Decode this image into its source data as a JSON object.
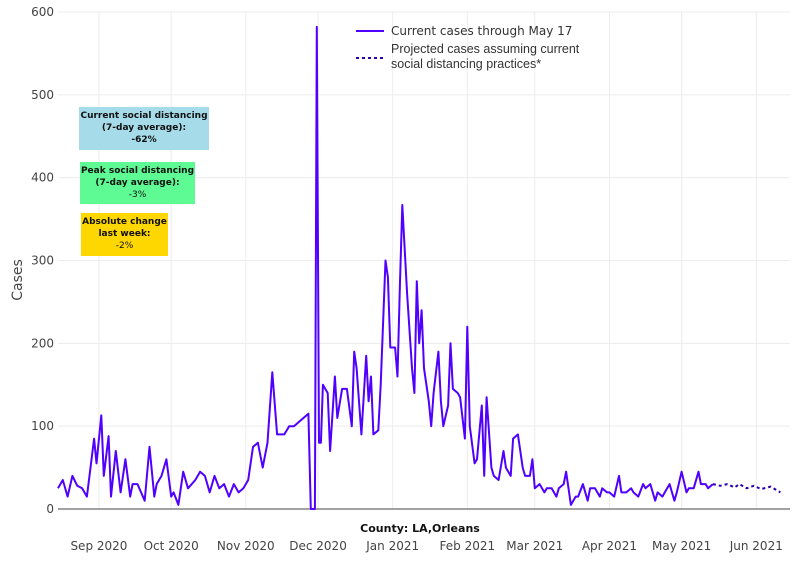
{
  "chart_data": {
    "type": "line",
    "title": "",
    "xlabel": "County: LA,Orleans",
    "ylabel": "Cases",
    "x_units": "days since 2020-09-01",
    "xlim": [
      -17,
      287
    ],
    "ylim": [
      0,
      600
    ],
    "yticks": [
      0,
      100,
      200,
      300,
      400,
      500,
      600
    ],
    "xticks": [
      {
        "day": 0,
        "label": "Sep 2020"
      },
      {
        "day": 30,
        "label": "Oct 2020"
      },
      {
        "day": 61,
        "label": "Nov 2020"
      },
      {
        "day": 91,
        "label": "Dec 2020"
      },
      {
        "day": 122,
        "label": "Jan 2021"
      },
      {
        "day": 153,
        "label": "Feb 2021"
      },
      {
        "day": 181,
        "label": "Mar 2021"
      },
      {
        "day": 212,
        "label": "Apr 2021"
      },
      {
        "day": 242,
        "label": "May 2021"
      },
      {
        "day": 273,
        "label": "Jun 2021"
      }
    ],
    "grid": true,
    "legend_position": "top-right",
    "series": [
      {
        "name": "Current cases through May 17",
        "style": "solid",
        "color": "#4f00ff",
        "points": [
          [
            -17,
            25
          ],
          [
            -15,
            35
          ],
          [
            -13,
            15
          ],
          [
            -11,
            40
          ],
          [
            -9,
            28
          ],
          [
            -7,
            25
          ],
          [
            -5,
            15
          ],
          [
            -2,
            85
          ],
          [
            -1,
            55
          ],
          [
            1,
            113
          ],
          [
            2,
            40
          ],
          [
            4,
            88
          ],
          [
            5,
            15
          ],
          [
            7,
            70
          ],
          [
            9,
            20
          ],
          [
            11,
            60
          ],
          [
            13,
            15
          ],
          [
            14,
            30
          ],
          [
            16,
            30
          ],
          [
            19,
            10
          ],
          [
            21,
            75
          ],
          [
            23,
            15
          ],
          [
            24,
            30
          ],
          [
            26,
            40
          ],
          [
            28,
            60
          ],
          [
            30,
            15
          ],
          [
            31,
            20
          ],
          [
            33,
            5
          ],
          [
            35,
            45
          ],
          [
            37,
            25
          ],
          [
            40,
            35
          ],
          [
            42,
            45
          ],
          [
            44,
            40
          ],
          [
            46,
            20
          ],
          [
            48,
            40
          ],
          [
            50,
            25
          ],
          [
            52,
            30
          ],
          [
            54,
            15
          ],
          [
            56,
            30
          ],
          [
            58,
            20
          ],
          [
            60,
            25
          ],
          [
            62,
            35
          ],
          [
            64,
            75
          ],
          [
            66,
            80
          ],
          [
            68,
            50
          ],
          [
            70,
            80
          ],
          [
            72,
            165
          ],
          [
            74,
            90
          ],
          [
            77,
            90
          ],
          [
            79,
            100
          ],
          [
            81,
            100
          ],
          [
            83,
            105
          ],
          [
            85,
            110
          ],
          [
            87,
            115
          ],
          [
            88,
            0
          ],
          [
            89.7,
            0
          ],
          [
            90.5,
            582
          ],
          [
            91.4,
            80
          ],
          [
            92.2,
            80
          ],
          [
            93,
            150
          ],
          [
            95,
            140
          ],
          [
            96,
            70
          ],
          [
            98,
            160
          ],
          [
            99,
            110
          ],
          [
            101,
            145
          ],
          [
            103,
            145
          ],
          [
            105,
            100
          ],
          [
            106,
            190
          ],
          [
            107,
            170
          ],
          [
            109,
            90
          ],
          [
            111,
            185
          ],
          [
            112,
            130
          ],
          [
            113,
            160
          ],
          [
            114,
            90
          ],
          [
            116,
            95
          ],
          [
            117,
            150
          ],
          [
            119,
            300
          ],
          [
            120,
            280
          ],
          [
            121,
            195
          ],
          [
            123,
            195
          ],
          [
            124,
            160
          ],
          [
            125,
            270
          ],
          [
            126,
            367
          ],
          [
            128,
            260
          ],
          [
            130,
            170
          ],
          [
            131,
            140
          ],
          [
            132,
            275
          ],
          [
            133,
            200
          ],
          [
            134,
            240
          ],
          [
            135,
            170
          ],
          [
            137,
            130
          ],
          [
            138,
            100
          ],
          [
            139,
            140
          ],
          [
            141,
            190
          ],
          [
            142,
            130
          ],
          [
            143,
            100
          ],
          [
            145,
            125
          ],
          [
            146,
            200
          ],
          [
            147,
            145
          ],
          [
            149,
            140
          ],
          [
            150,
            135
          ],
          [
            152,
            85
          ],
          [
            153,
            220
          ],
          [
            154,
            100
          ],
          [
            156,
            55
          ],
          [
            157,
            60
          ],
          [
            159,
            125
          ],
          [
            160,
            40
          ],
          [
            161,
            135
          ],
          [
            163,
            50
          ],
          [
            164,
            40
          ],
          [
            166,
            35
          ],
          [
            168,
            70
          ],
          [
            169,
            50
          ],
          [
            171,
            40
          ],
          [
            172,
            85
          ],
          [
            174,
            90
          ],
          [
            176,
            50
          ],
          [
            177,
            40
          ],
          [
            179,
            40
          ],
          [
            180,
            60
          ],
          [
            181,
            25
          ],
          [
            183,
            30
          ],
          [
            185,
            20
          ],
          [
            186,
            25
          ],
          [
            188,
            25
          ],
          [
            190,
            15
          ],
          [
            191,
            25
          ],
          [
            193,
            30
          ],
          [
            194,
            45
          ],
          [
            196,
            5
          ],
          [
            198,
            15
          ],
          [
            199,
            15
          ],
          [
            201,
            30
          ],
          [
            203,
            10
          ],
          [
            204,
            25
          ],
          [
            206,
            25
          ],
          [
            208,
            15
          ],
          [
            209,
            25
          ],
          [
            211,
            20
          ],
          [
            212,
            20
          ],
          [
            214,
            15
          ],
          [
            216,
            40
          ],
          [
            217,
            20
          ],
          [
            219,
            20
          ],
          [
            221,
            25
          ],
          [
            222,
            20
          ],
          [
            224,
            15
          ],
          [
            226,
            30
          ],
          [
            227,
            25
          ],
          [
            229,
            30
          ],
          [
            231,
            10
          ],
          [
            232,
            20
          ],
          [
            234,
            15
          ],
          [
            235,
            20
          ],
          [
            237,
            30
          ],
          [
            239,
            10
          ],
          [
            240,
            20
          ],
          [
            242,
            45
          ],
          [
            244,
            20
          ],
          [
            245,
            25
          ],
          [
            247,
            25
          ],
          [
            249,
            45
          ],
          [
            250,
            30
          ],
          [
            252,
            30
          ],
          [
            253,
            25
          ],
          [
            255,
            30
          ]
        ]
      },
      {
        "name": "Projected cases assuming current social distancing practices*",
        "style": "dotted",
        "color": "#2a00b0",
        "points": [
          [
            255,
            30
          ],
          [
            258,
            28
          ],
          [
            261,
            30
          ],
          [
            264,
            26
          ],
          [
            266,
            30
          ],
          [
            269,
            25
          ],
          [
            272,
            28
          ],
          [
            275,
            24
          ],
          [
            279,
            27
          ],
          [
            283,
            20
          ]
        ]
      }
    ],
    "annotations": [
      {
        "title": "Current social distancing",
        "subtitle": "(7-day average):",
        "value": "-62%",
        "color": "#a6dbe9"
      },
      {
        "title": "Peak social distancing",
        "subtitle": "(7-day average):",
        "value": "-3%",
        "color": "#5efa93"
      },
      {
        "title": "Absolute change",
        "subtitle": "last week:",
        "value": "-2%",
        "color": "#ffd700"
      }
    ]
  }
}
